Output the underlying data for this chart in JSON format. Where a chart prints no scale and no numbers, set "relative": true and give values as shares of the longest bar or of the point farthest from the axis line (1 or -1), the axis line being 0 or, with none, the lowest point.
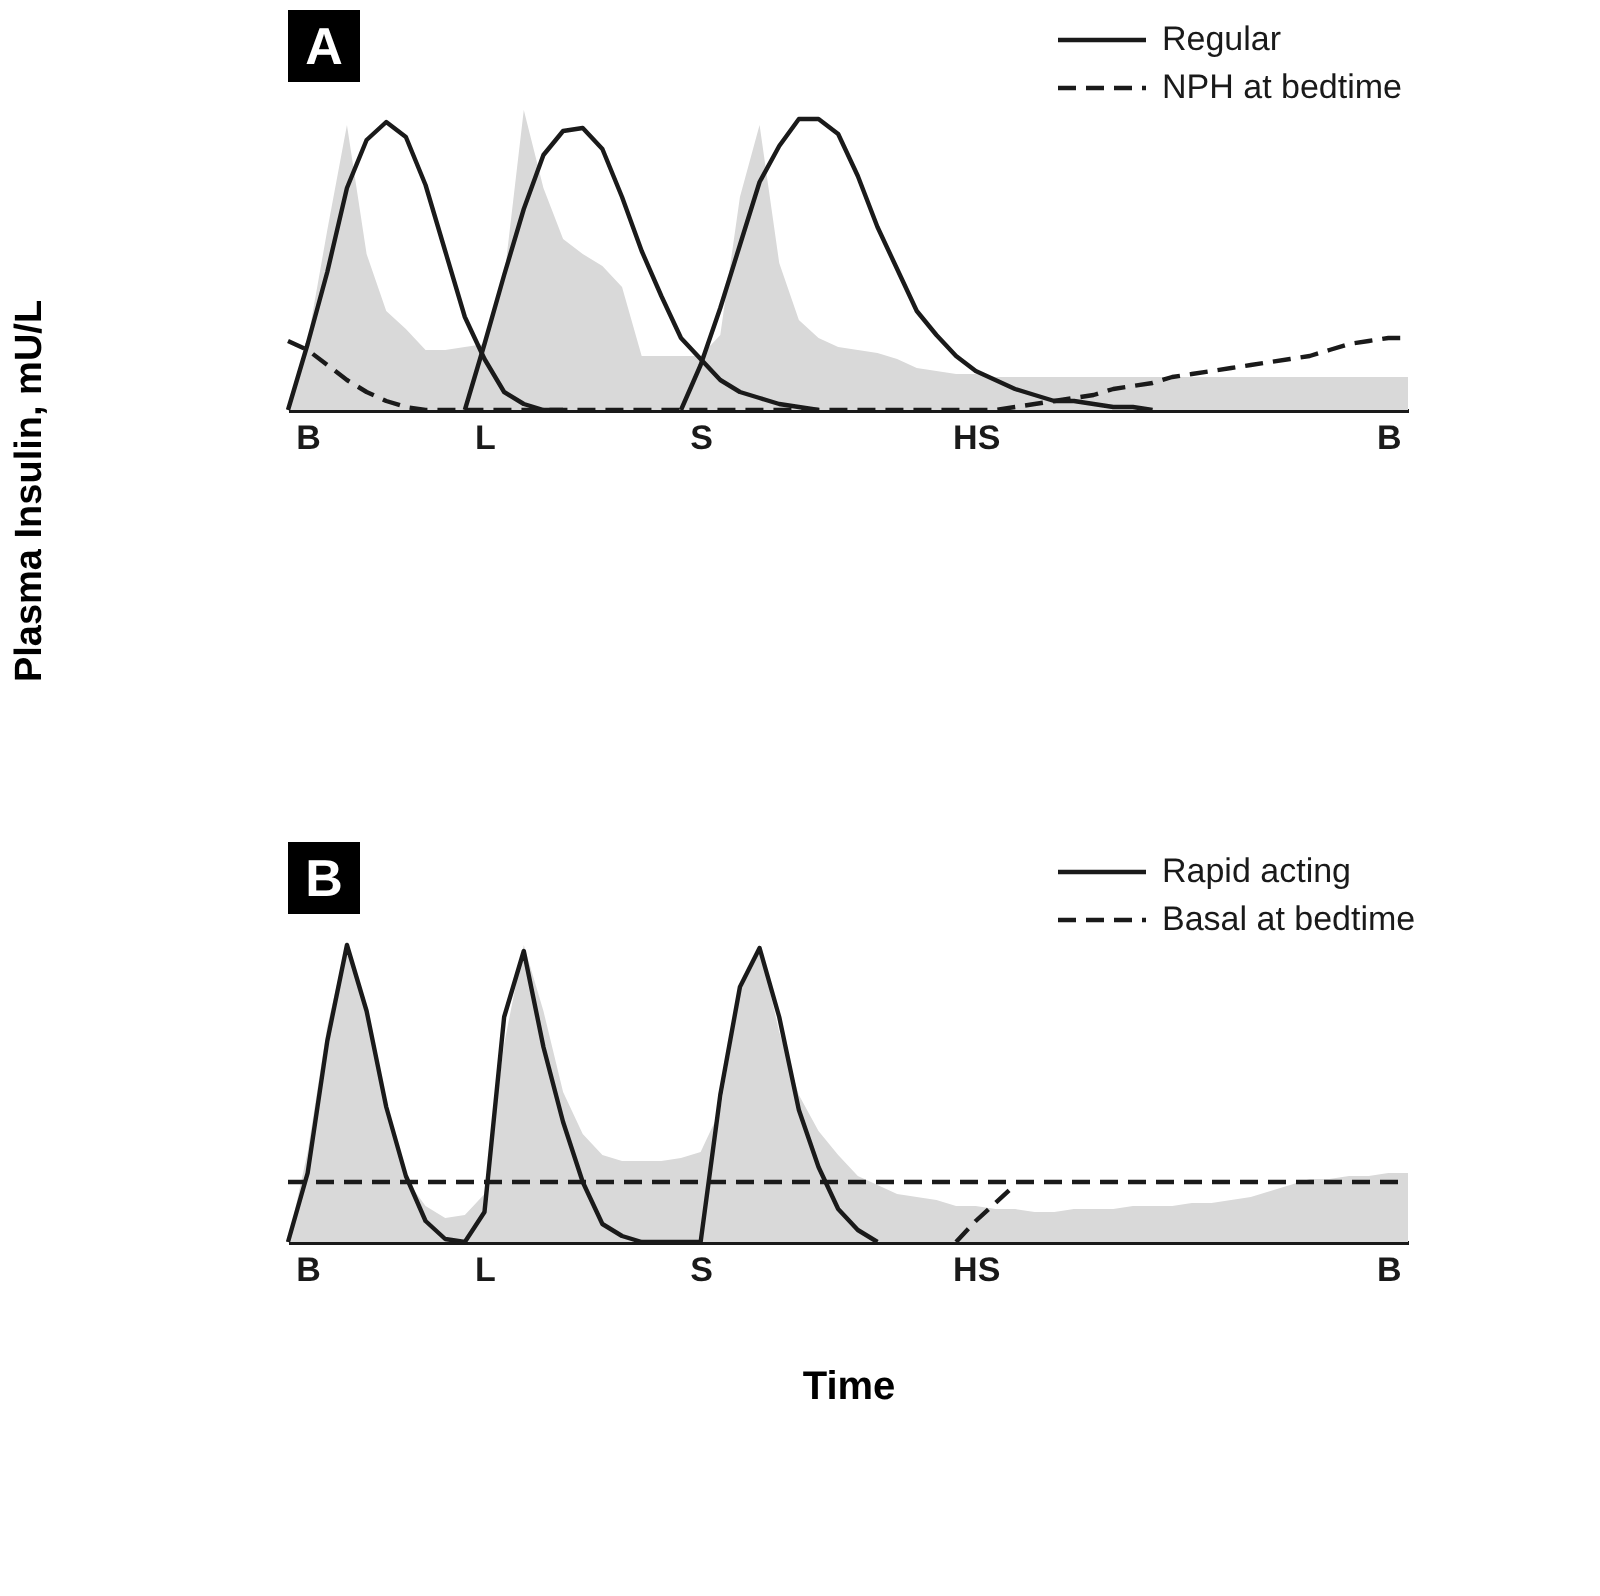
{
  "chart_data": [
    {
      "type": "line",
      "title": "A",
      "ylabel": "Plasma Insulin, mU/L",
      "relative": true,
      "grid": false,
      "legend": "top right",
      "marker": "none",
      "categories": [
        null,
        "B",
        null,
        null,
        null,
        null,
        null,
        null,
        null,
        null,
        "L",
        null,
        null,
        null,
        null,
        null,
        null,
        null,
        null,
        null,
        null,
        "S",
        null,
        null,
        null,
        null,
        null,
        null,
        null,
        null,
        null,
        null,
        null,
        null,
        null,
        "HS",
        null,
        null,
        null,
        null,
        null,
        null,
        null,
        null,
        null,
        null,
        null,
        null,
        null,
        null,
        null,
        null,
        null,
        null,
        null,
        null,
        "B",
        null
      ],
      "series": [
        {
          "type": "area",
          "color": "#d9d9d9",
          "values": [
            0,
            0.23,
            0.6,
            0.95,
            0.52,
            0.33,
            0.27,
            0.2,
            0.2,
            0.21,
            0.22,
            0.44,
            1,
            0.74,
            0.57,
            0.52,
            0.48,
            0.41,
            0.18,
            0.18,
            0.18,
            0.18,
            0.25,
            0.71,
            0.95,
            0.49,
            0.3,
            0.24,
            0.21,
            0.2,
            0.19,
            0.17,
            0.14,
            0.13,
            0.12,
            0.12,
            0.11,
            0.11,
            0.11,
            0.11,
            0.11,
            0.11,
            0.11,
            0.11,
            0.11,
            0.11,
            0.11,
            0.11,
            0.11,
            0.11,
            0.11,
            0.11,
            0.11,
            0.11,
            0.11,
            0.11,
            0.11,
            0.11
          ]
        },
        {
          "name": "Regular",
          "color": "#1a1a1a",
          "line_style": "solid",
          "values": [
            0,
            0.22,
            0.46,
            0.74,
            0.9,
            0.96,
            0.91,
            0.75,
            0.53,
            0.31,
            0.17,
            0.06,
            0.02,
            0,
            0,
            null,
            null,
            null,
            null,
            null,
            null,
            null,
            null,
            null,
            null,
            null,
            null,
            null,
            null,
            null,
            null,
            null,
            null,
            null,
            null,
            null,
            null,
            null,
            null,
            null,
            null,
            null,
            null,
            null,
            null,
            null,
            null,
            null,
            null,
            null,
            null,
            null,
            null,
            null,
            null,
            null,
            null,
            null
          ]
        },
        {
          "color": "#1a1a1a",
          "line_style": "solid",
          "values": [
            null,
            null,
            null,
            null,
            null,
            null,
            null,
            null,
            null,
            0,
            0.22,
            0.45,
            0.67,
            0.85,
            0.93,
            0.94,
            0.87,
            0.71,
            0.53,
            0.38,
            0.24,
            0.17,
            0.1,
            0.06,
            0.04,
            0.02,
            0.01,
            0,
            null,
            null,
            null,
            null,
            null,
            null,
            null,
            null,
            null,
            null,
            null,
            null,
            null,
            null,
            null,
            null,
            null,
            null,
            null,
            null,
            null,
            null,
            null,
            null,
            null,
            null,
            null,
            null,
            null,
            null
          ]
        },
        {
          "color": "#1a1a1a",
          "line_style": "solid",
          "values": [
            null,
            null,
            null,
            null,
            null,
            null,
            null,
            null,
            null,
            null,
            null,
            null,
            null,
            null,
            null,
            null,
            null,
            null,
            null,
            null,
            0,
            0.15,
            0.34,
            0.55,
            0.76,
            0.88,
            0.97,
            0.97,
            0.92,
            0.78,
            0.61,
            0.47,
            0.33,
            0.25,
            0.18,
            0.13,
            0.1,
            0.07,
            0.05,
            0.03,
            0.03,
            0.02,
            0.01,
            0.01,
            0,
            null,
            null,
            null,
            null,
            null,
            null,
            null,
            null,
            null,
            null,
            null,
            null,
            null
          ]
        },
        {
          "name": "NPH at bedtime",
          "color": "#1a1a1a",
          "line_style": "dashed",
          "values": [
            0.23,
            0.2,
            0.15,
            0.1,
            0.06,
            0.03,
            0.01,
            0,
            0,
            0,
            0,
            0,
            0,
            0,
            0,
            0,
            0,
            0,
            0,
            0,
            0,
            0,
            0,
            0,
            0,
            0,
            0,
            0,
            0,
            0,
            0,
            0,
            0,
            0,
            0,
            0,
            0,
            0.01,
            0.02,
            0.03,
            0.04,
            0.05,
            0.07,
            0.08,
            0.09,
            0.11,
            0.12,
            0.13,
            0.14,
            0.15,
            0.16,
            0.17,
            0.18,
            0.2,
            0.22,
            0.23,
            0.24,
            0.24
          ]
        }
      ]
    },
    {
      "type": "line",
      "title": "B",
      "xlabel": "Time",
      "relative": true,
      "grid": false,
      "legend": "top right",
      "marker": "none",
      "categories": [
        null,
        "B",
        null,
        null,
        null,
        null,
        null,
        null,
        null,
        null,
        "L",
        null,
        null,
        null,
        null,
        null,
        null,
        null,
        null,
        null,
        null,
        "S",
        null,
        null,
        null,
        null,
        null,
        null,
        null,
        null,
        null,
        null,
        null,
        null,
        null,
        "HS",
        null,
        null,
        null,
        null,
        null,
        null,
        null,
        null,
        null,
        null,
        null,
        null,
        null,
        null,
        null,
        null,
        null,
        null,
        null,
        null,
        "B",
        null
      ],
      "series": [
        {
          "type": "area",
          "color": "#d9d9d9",
          "values": [
            0,
            0.3,
            0.72,
            1,
            0.77,
            0.44,
            0.21,
            0.12,
            0.08,
            0.09,
            0.16,
            0.66,
            0.99,
            0.77,
            0.5,
            0.36,
            0.29,
            0.27,
            0.27,
            0.27,
            0.28,
            0.3,
            0.44,
            0.83,
            0.99,
            0.7,
            0.49,
            0.37,
            0.29,
            0.22,
            0.19,
            0.16,
            0.15,
            0.14,
            0.12,
            0.12,
            0.11,
            0.11,
            0.1,
            0.1,
            0.11,
            0.11,
            0.11,
            0.12,
            0.12,
            0.12,
            0.13,
            0.13,
            0.14,
            0.15,
            0.17,
            0.19,
            0.21,
            0.21,
            0.22,
            0.22,
            0.23,
            0.23
          ]
        },
        {
          "name": "Rapid acting",
          "color": "#1a1a1a",
          "line_style": "solid",
          "values": [
            0,
            0.23,
            0.67,
            0.99,
            0.77,
            0.45,
            0.22,
            0.07,
            0.01,
            0,
            0.1,
            0.75,
            0.97,
            0.65,
            0.4,
            0.2,
            0.06,
            0.02,
            0,
            0,
            0,
            0,
            0.49,
            0.85,
            0.98,
            0.75,
            0.44,
            0.25,
            0.11,
            0.04,
            0,
            null,
            null,
            null,
            null,
            null,
            null,
            null,
            null,
            null,
            null,
            null,
            null,
            null,
            null,
            null,
            null,
            null,
            null,
            null,
            null,
            null,
            null,
            null,
            null,
            null,
            null,
            null
          ]
        },
        {
          "name": "Basal at bedtime",
          "color": "#1a1a1a",
          "line_style": "dashed",
          "values": [
            0.2,
            0.2,
            0.2,
            0.2,
            0.2,
            0.2,
            0.2,
            0.2,
            0.2,
            0.2,
            0.2,
            0.2,
            0.2,
            0.2,
            0.2,
            0.2,
            0.2,
            0.2,
            0.2,
            0.2,
            0.2,
            0.2,
            0.2,
            0.2,
            0.2,
            0.2,
            0.2,
            0.2,
            0.2,
            0.2,
            0.2,
            0.2,
            0.2,
            0.2,
            0.2,
            0.2,
            0.2,
            0.2,
            0.2,
            0.2,
            0.2,
            0.2,
            0.2,
            0.2,
            0.2,
            0.2,
            0.2,
            0.2,
            0.2,
            0.2,
            0.2,
            0.2,
            0.2,
            0.2,
            0.2,
            0.2,
            0.2,
            0.2
          ]
        },
        {
          "color": "#1a1a1a",
          "line_style": "dashed",
          "values": [
            null,
            null,
            null,
            null,
            null,
            null,
            null,
            null,
            null,
            null,
            null,
            null,
            null,
            null,
            null,
            null,
            null,
            null,
            null,
            null,
            null,
            null,
            null,
            null,
            null,
            null,
            null,
            null,
            null,
            null,
            null,
            null,
            null,
            null,
            0,
            0.07,
            0.13,
            0.19,
            null,
            null,
            null,
            null,
            null,
            null,
            null,
            null,
            null,
            null,
            null,
            null,
            null,
            null,
            null,
            null,
            null,
            null,
            null,
            null
          ]
        }
      ]
    }
  ]
}
